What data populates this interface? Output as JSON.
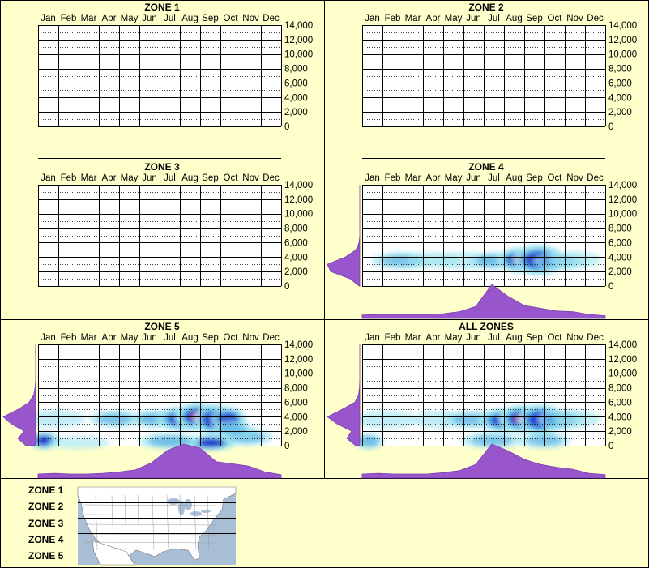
{
  "months": [
    "Jan",
    "Feb",
    "Mar",
    "Apr",
    "May",
    "Jun",
    "Jul",
    "Aug",
    "Sep",
    "Oct",
    "Nov",
    "Dec"
  ],
  "y_ticks": [
    "14,000",
    "12,000",
    "10,000",
    "8,000",
    "6,000",
    "4,000",
    "2,000",
    "0"
  ],
  "colors": {
    "background": "#ffffcc",
    "density_fill": "#9955cc",
    "heat_low": "#9fe5f0",
    "heat_mid": "#3399dd",
    "heat_high": "#2222cc",
    "heat_peak": "#ff2288"
  },
  "map": {
    "zone_labels": [
      "ZONE 1",
      "ZONE 2",
      "ZONE 3",
      "ZONE 4",
      "ZONE 5"
    ],
    "land_color": "#ffffff",
    "water_color": "#a9bfd6"
  },
  "chart_data": [
    {
      "type": "heatmap",
      "title": "ZONE 1",
      "x_categories": [
        "Jan",
        "Feb",
        "Mar",
        "Apr",
        "May",
        "Jun",
        "Jul",
        "Aug",
        "Sep",
        "Oct",
        "Nov",
        "Dec"
      ],
      "ylim": [
        0,
        14000
      ],
      "hotspots": [],
      "marginal_month": [],
      "marginal_y": []
    },
    {
      "type": "heatmap",
      "title": "ZONE 2",
      "x_categories": [
        "Jan",
        "Feb",
        "Mar",
        "Apr",
        "May",
        "Jun",
        "Jul",
        "Aug",
        "Sep",
        "Oct",
        "Nov",
        "Dec"
      ],
      "ylim": [
        0,
        14000
      ],
      "hotspots": [],
      "marginal_month": [],
      "marginal_y": []
    },
    {
      "type": "heatmap",
      "title": "ZONE 3",
      "x_categories": [
        "Jan",
        "Feb",
        "Mar",
        "Apr",
        "May",
        "Jun",
        "Jul",
        "Aug",
        "Sep",
        "Oct",
        "Nov",
        "Dec"
      ],
      "ylim": [
        0,
        14000
      ],
      "hotspots": [],
      "marginal_month": [],
      "marginal_y": []
    },
    {
      "type": "heatmap",
      "title": "ZONE 4",
      "x_categories": [
        "Jan",
        "Feb",
        "Mar",
        "Apr",
        "May",
        "Jun",
        "Jul",
        "Aug",
        "Sep",
        "Oct",
        "Nov",
        "Dec"
      ],
      "ylim": [
        0,
        14000
      ],
      "hotspots": [
        {
          "month": 2.0,
          "y": 3500,
          "intensity": 0.25,
          "spread_month": 0.6,
          "spread_y": 500
        },
        {
          "month": 3.5,
          "y": 3600,
          "intensity": 0.2,
          "spread_month": 0.5,
          "spread_y": 450
        },
        {
          "month": 5.0,
          "y": 3500,
          "intensity": 0.2,
          "spread_month": 0.6,
          "spread_y": 500
        },
        {
          "month": 6.5,
          "y": 3500,
          "intensity": 0.3,
          "spread_month": 0.5,
          "spread_y": 500
        },
        {
          "month": 7.8,
          "y": 3600,
          "intensity": 1.0,
          "spread_month": 0.45,
          "spread_y": 700
        },
        {
          "month": 8.7,
          "y": 3600,
          "intensity": 0.7,
          "spread_month": 0.5,
          "spread_y": 900
        },
        {
          "month": 9.7,
          "y": 3400,
          "intensity": 0.35,
          "spread_month": 0.5,
          "spread_y": 500
        },
        {
          "month": 10.5,
          "y": 3600,
          "intensity": 0.2,
          "spread_month": 0.5,
          "spread_y": 500
        }
      ],
      "marginal_month": [
        0.1,
        0.12,
        0.12,
        0.12,
        0.12,
        0.14,
        0.2,
        0.35,
        1.0,
        0.65,
        0.38,
        0.3,
        0.22,
        0.2,
        0.12,
        0.08
      ],
      "marginal_y": [
        0.02,
        0.3,
        0.9,
        1.0,
        0.45,
        0.12,
        0.02,
        0,
        0,
        0,
        0,
        0,
        0,
        0,
        0
      ]
    },
    {
      "type": "heatmap",
      "title": "ZONE 5",
      "x_categories": [
        "Jan",
        "Feb",
        "Mar",
        "Apr",
        "May",
        "Jun",
        "Jul",
        "Aug",
        "Sep",
        "Oct",
        "Nov",
        "Dec"
      ],
      "ylim": [
        0,
        14000
      ],
      "hotspots": [
        {
          "month": 0.3,
          "y": 700,
          "intensity": 0.7,
          "spread_month": 0.3,
          "spread_y": 500
        },
        {
          "month": 0.8,
          "y": 3700,
          "intensity": 0.2,
          "spread_month": 0.6,
          "spread_y": 500
        },
        {
          "month": 2.0,
          "y": 400,
          "intensity": 0.15,
          "spread_month": 0.6,
          "spread_y": 350
        },
        {
          "month": 3.8,
          "y": 3700,
          "intensity": 0.25,
          "spread_month": 0.5,
          "spread_y": 500
        },
        {
          "month": 5.8,
          "y": 3700,
          "intensity": 0.35,
          "spread_month": 0.5,
          "spread_y": 500
        },
        {
          "month": 7.1,
          "y": 3700,
          "intensity": 0.7,
          "spread_month": 0.5,
          "spread_y": 700
        },
        {
          "month": 7.9,
          "y": 4000,
          "intensity": 1.0,
          "spread_month": 0.45,
          "spread_y": 800
        },
        {
          "month": 8.7,
          "y": 3600,
          "intensity": 0.8,
          "spread_month": 0.4,
          "spread_y": 900
        },
        {
          "month": 9.4,
          "y": 3700,
          "intensity": 0.55,
          "spread_month": 0.35,
          "spread_y": 700
        },
        {
          "month": 8.5,
          "y": 400,
          "intensity": 0.8,
          "spread_month": 0.5,
          "spread_y": 450
        },
        {
          "month": 6.5,
          "y": 600,
          "intensity": 0.35,
          "spread_month": 0.6,
          "spread_y": 450
        },
        {
          "month": 10.3,
          "y": 1200,
          "intensity": 0.25,
          "spread_month": 0.5,
          "spread_y": 500
        },
        {
          "month": 9.6,
          "y": 2300,
          "intensity": 0.25,
          "spread_month": 0.4,
          "spread_y": 500
        }
      ],
      "marginal_month": [
        0.12,
        0.14,
        0.12,
        0.12,
        0.14,
        0.18,
        0.24,
        0.45,
        0.82,
        1.0,
        0.88,
        0.48,
        0.42,
        0.35,
        0.18,
        0.1
      ],
      "marginal_y": [
        0.3,
        0.55,
        0.35,
        0.75,
        1.0,
        0.55,
        0.2,
        0.06,
        0.02,
        0,
        0,
        0,
        0,
        0,
        0
      ]
    },
    {
      "type": "heatmap",
      "title": "ALL ZONES",
      "x_categories": [
        "Jan",
        "Feb",
        "Mar",
        "Apr",
        "May",
        "Jun",
        "Jul",
        "Aug",
        "Sep",
        "Oct",
        "Nov",
        "Dec"
      ],
      "ylim": [
        0,
        14000
      ],
      "hotspots": [
        {
          "month": 0.3,
          "y": 600,
          "intensity": 0.35,
          "spread_month": 0.3,
          "spread_y": 450
        },
        {
          "month": 1.2,
          "y": 3600,
          "intensity": 0.2,
          "spread_month": 0.6,
          "spread_y": 500
        },
        {
          "month": 3.8,
          "y": 3600,
          "intensity": 0.22,
          "spread_month": 0.5,
          "spread_y": 500
        },
        {
          "month": 5.5,
          "y": 3600,
          "intensity": 0.25,
          "spread_month": 0.6,
          "spread_y": 500
        },
        {
          "month": 7.0,
          "y": 3500,
          "intensity": 0.6,
          "spread_month": 0.5,
          "spread_y": 700
        },
        {
          "month": 7.9,
          "y": 3700,
          "intensity": 1.0,
          "spread_month": 0.45,
          "spread_y": 800
        },
        {
          "month": 8.8,
          "y": 3600,
          "intensity": 0.7,
          "spread_month": 0.45,
          "spread_y": 900
        },
        {
          "month": 9.8,
          "y": 3600,
          "intensity": 0.4,
          "spread_month": 0.45,
          "spread_y": 600
        },
        {
          "month": 10.6,
          "y": 3700,
          "intensity": 0.2,
          "spread_month": 0.45,
          "spread_y": 500
        },
        {
          "month": 9.0,
          "y": 700,
          "intensity": 0.25,
          "spread_month": 0.5,
          "spread_y": 450
        },
        {
          "month": 6.4,
          "y": 700,
          "intensity": 0.25,
          "spread_month": 0.6,
          "spread_y": 450
        }
      ],
      "marginal_month": [
        0.12,
        0.14,
        0.12,
        0.12,
        0.12,
        0.16,
        0.22,
        0.4,
        1.0,
        0.8,
        0.55,
        0.4,
        0.32,
        0.26,
        0.14,
        0.1
      ],
      "marginal_y": [
        0.12,
        0.4,
        0.25,
        0.7,
        1.0,
        0.55,
        0.15,
        0.04,
        0.01,
        0,
        0,
        0,
        0,
        0,
        0
      ]
    }
  ]
}
